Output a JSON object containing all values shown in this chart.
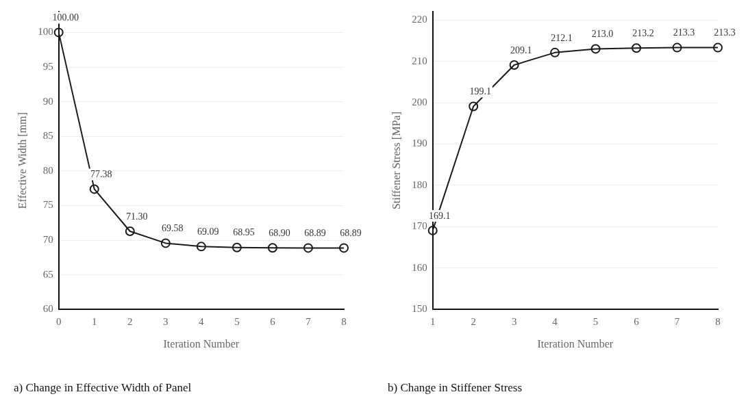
{
  "chart_data": [
    {
      "type": "line",
      "title": "a) Change in Effective Width of Panel",
      "xlabel": "Iteration Number",
      "ylabel": "Effective Width [mm]",
      "categories": [
        "0",
        "1",
        "2",
        "3",
        "4",
        "5",
        "6",
        "7",
        "8"
      ],
      "series": [
        {
          "color": "#1a1a1a",
          "values": [
            100.0,
            77.38,
            71.3,
            69.58,
            69.09,
            68.95,
            68.9,
            68.89,
            68.89
          ]
        }
      ],
      "value_labels": [
        "100.00",
        "77.38",
        "71.30",
        "69.58",
        "69.09",
        "68.95",
        "68.90",
        "68.89",
        "68.89"
      ],
      "ylim": [
        60,
        103
      ],
      "yticks": [
        60,
        65,
        70,
        75,
        80,
        85,
        90,
        95,
        100
      ],
      "grid": "y",
      "marker": "circle",
      "legend": false
    },
    {
      "type": "line",
      "title": "b) Change in Stiffener Stress",
      "xlabel": "Iteration Number",
      "ylabel": "Stiffener Stress [MPa]",
      "categories": [
        "1",
        "2",
        "3",
        "4",
        "5",
        "6",
        "7",
        "8"
      ],
      "series": [
        {
          "color": "#1a1a1a",
          "values": [
            169.1,
            199.1,
            209.1,
            212.1,
            213.0,
            213.2,
            213.3,
            213.3
          ]
        }
      ],
      "value_labels": [
        "169.1",
        "199.1",
        "209.1",
        "212.1",
        "213.0",
        "213.2",
        "213.3",
        "213.3"
      ],
      "ylim": [
        150,
        222
      ],
      "yticks": [
        150,
        160,
        170,
        180,
        190,
        200,
        210,
        220
      ],
      "grid": "y",
      "marker": "circle",
      "legend": false
    }
  ]
}
